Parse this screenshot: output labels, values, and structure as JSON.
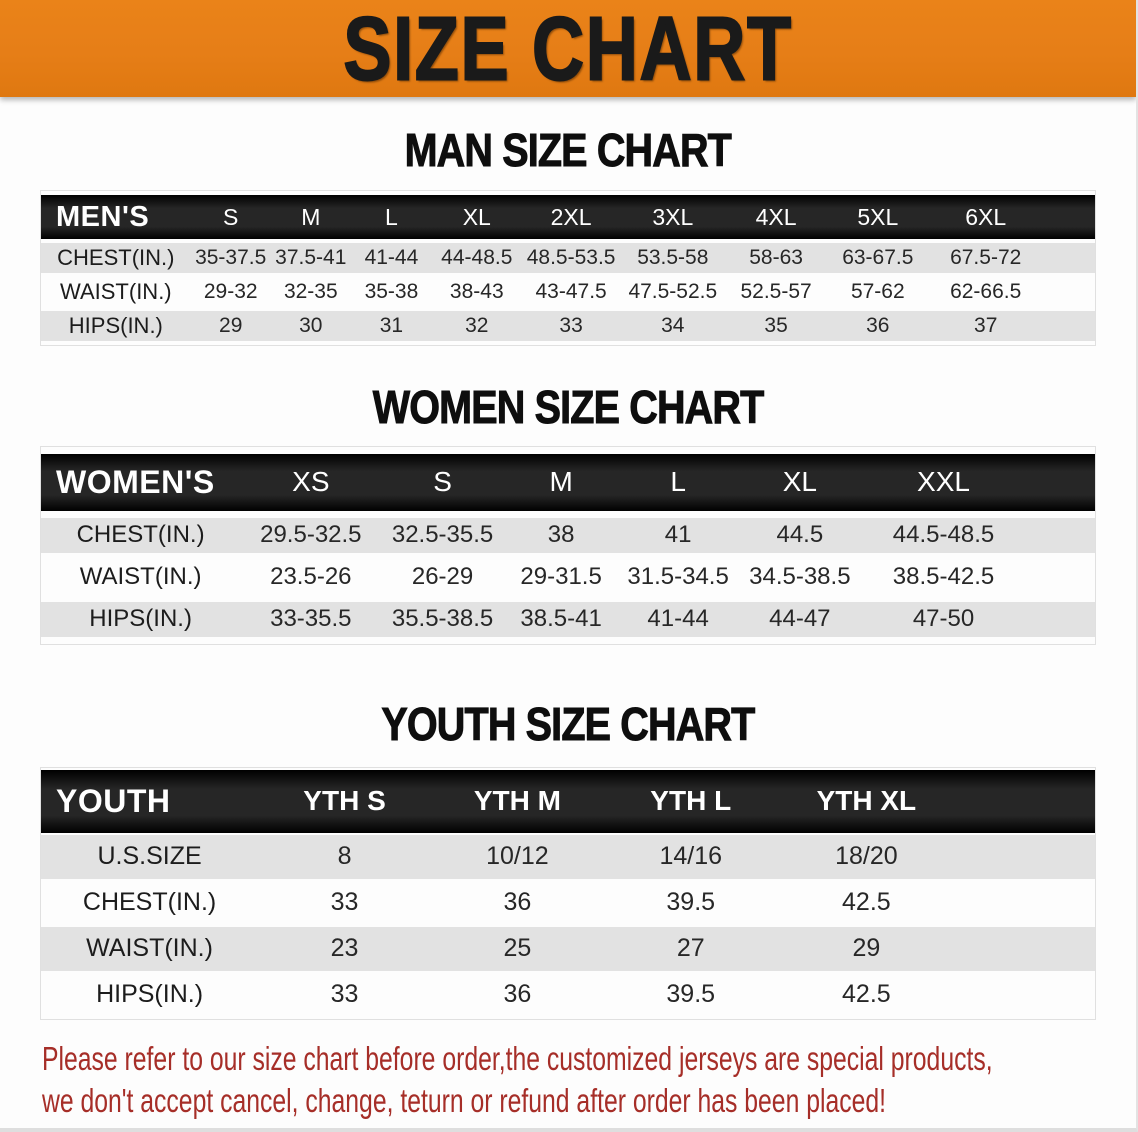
{
  "banner": {
    "title": "SIZE CHART"
  },
  "colors": {
    "banner_bg": "#e67e17",
    "banner_text": "#1a1a1a",
    "header_bar_bg": "#1b1b1b",
    "header_bar_text": "#ffffff",
    "row_stripe": "#e2e2e2",
    "disclaimer_text": "#a62e28"
  },
  "sections": [
    {
      "id": "men",
      "heading": "MAN SIZE CHART",
      "table": {
        "label": "MEN'S",
        "columns": [
          "S",
          "M",
          "L",
          "XL",
          "2XL",
          "3XL",
          "4XL",
          "5XL",
          "6XL"
        ],
        "rows": [
          {
            "label": "CHEST(IN.)",
            "values": [
              "35-37.5",
              "37.5-41",
              "41-44",
              "44-48.5",
              "48.5-53.5",
              "53.5-58",
              "58-63",
              "63-67.5",
              "67.5-72"
            ]
          },
          {
            "label": "WAIST(IN.)",
            "values": [
              "29-32",
              "32-35",
              "35-38",
              "38-43",
              "43-47.5",
              "47.5-52.5",
              "52.5-57",
              "57-62",
              "62-66.5"
            ]
          },
          {
            "label": "HIPS(IN.)",
            "values": [
              "29",
              "30",
              "31",
              "32",
              "33",
              "34",
              "35",
              "36",
              "37"
            ]
          }
        ]
      }
    },
    {
      "id": "women",
      "heading": "WOMEN SIZE CHART",
      "table": {
        "label": "WOMEN'S",
        "columns": [
          "XS",
          "S",
          "M",
          "L",
          "XL",
          "XXL"
        ],
        "rows": [
          {
            "label": "CHEST(IN.)",
            "values": [
              "29.5-32.5",
              "32.5-35.5",
              "38",
              "41",
              "44.5",
              "44.5-48.5"
            ]
          },
          {
            "label": "WAIST(IN.)",
            "values": [
              "23.5-26",
              "26-29",
              "29-31.5",
              "31.5-34.5",
              "34.5-38.5",
              "38.5-42.5"
            ]
          },
          {
            "label": "HIPS(IN.)",
            "values": [
              "33-35.5",
              "35.5-38.5",
              "38.5-41",
              "41-44",
              "44-47",
              "47-50"
            ]
          }
        ]
      }
    },
    {
      "id": "youth",
      "heading": "YOUTH SIZE CHART",
      "table": {
        "label": "YOUTH",
        "columns": [
          "YTH S",
          "YTH M",
          "YTH L",
          "YTH XL"
        ],
        "rows": [
          {
            "label": "U.S.SIZE",
            "values": [
              "8",
              "10/12",
              "14/16",
              "18/20"
            ]
          },
          {
            "label": "CHEST(IN.)",
            "values": [
              "33",
              "36",
              "39.5",
              "42.5"
            ]
          },
          {
            "label": "WAIST(IN.)",
            "values": [
              "23",
              "25",
              "27",
              "29"
            ]
          },
          {
            "label": "HIPS(IN.)",
            "values": [
              "33",
              "36",
              "39.5",
              "42.5"
            ]
          }
        ]
      }
    }
  ],
  "disclaimer": {
    "lines": [
      "Please refer to our size chart before order,the customized jerseys are special products,",
      "we don't accept cancel, change, teturn or refund after order has been placed!"
    ]
  }
}
